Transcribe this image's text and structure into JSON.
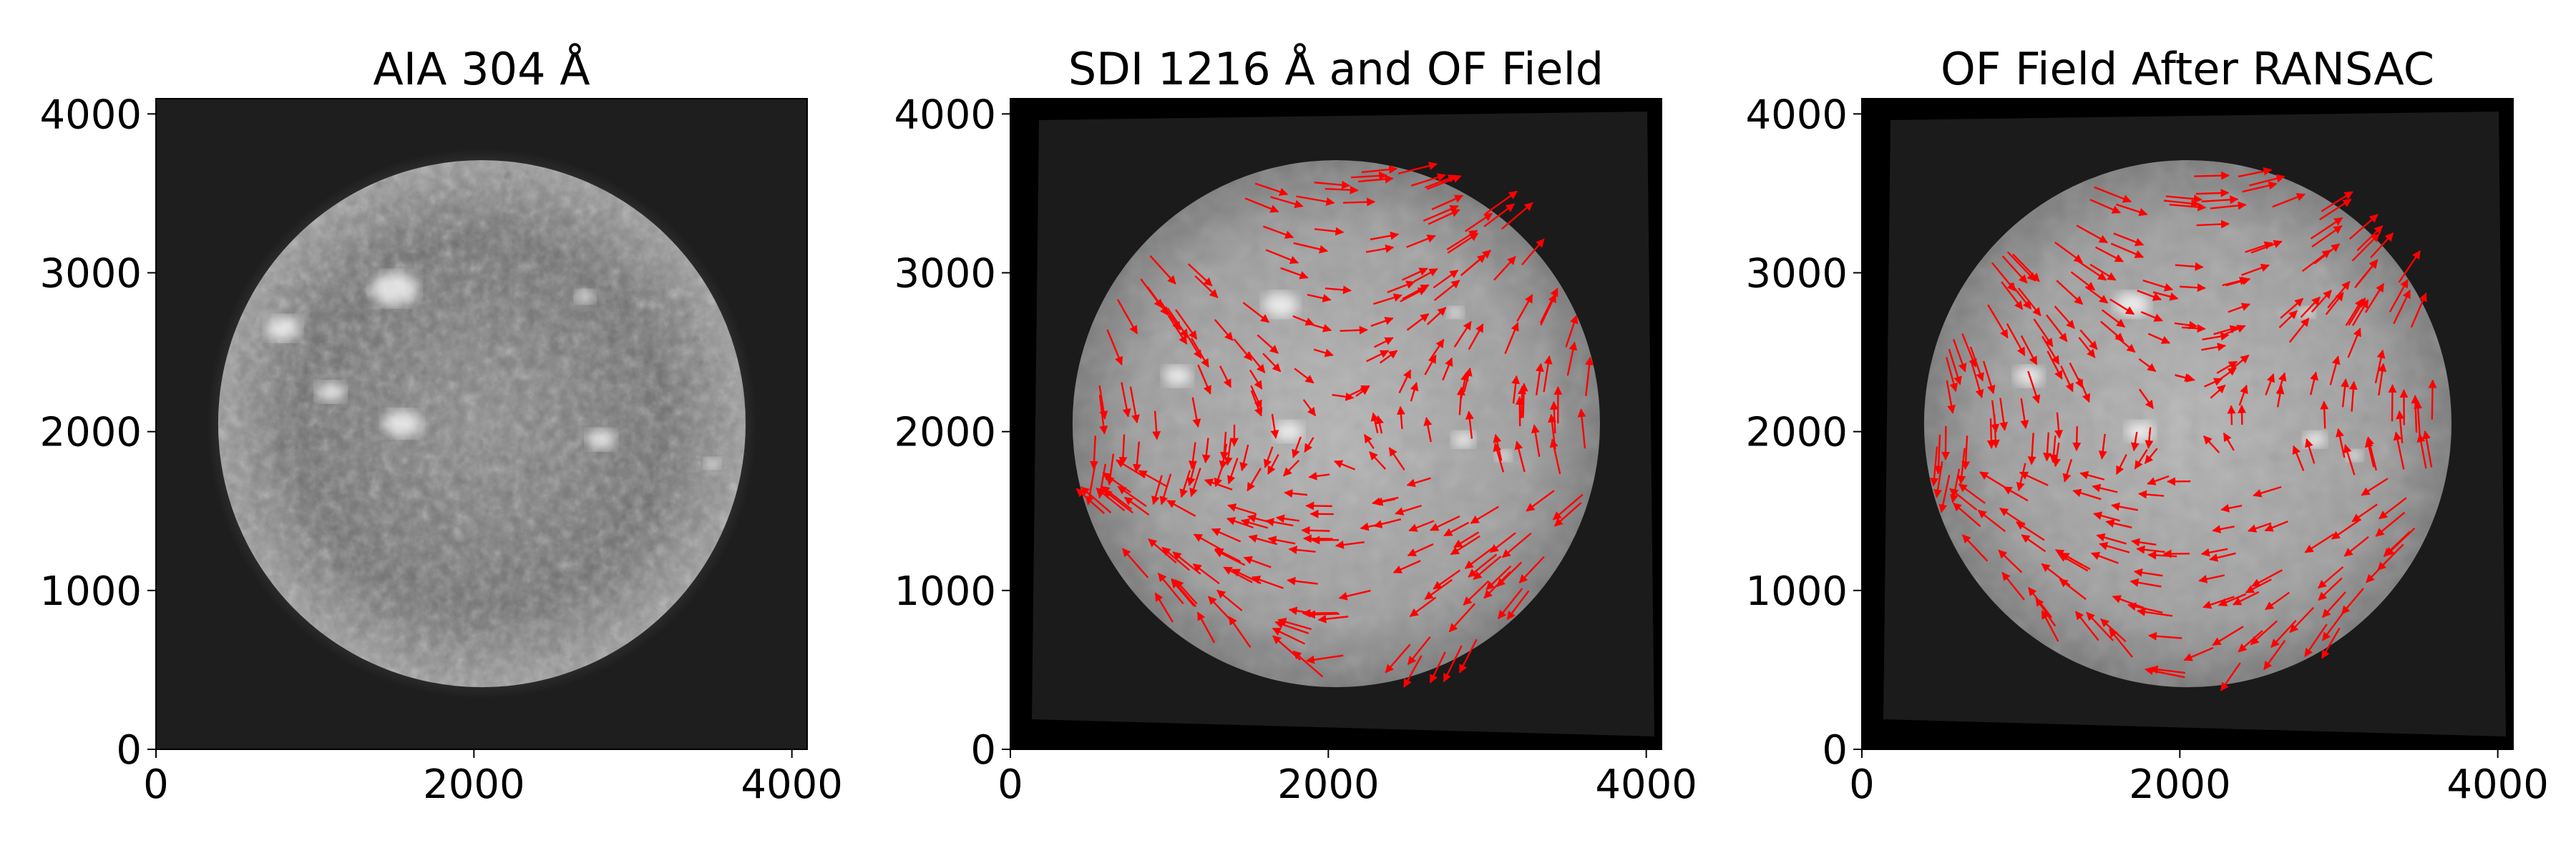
{
  "figure": {
    "panels": [
      {
        "id": "aia",
        "title": "AIA 304 Å",
        "xticks": [
          "0",
          "2000",
          "4000"
        ],
        "yticks": [
          "0",
          "1000",
          "2000",
          "3000",
          "4000"
        ],
        "arrows": false
      },
      {
        "id": "sdi",
        "title": "SDI 1216 Å and OF Field",
        "xticks": [
          "0",
          "2000",
          "4000"
        ],
        "yticks": [
          "0",
          "1000",
          "2000",
          "3000",
          "4000"
        ],
        "arrows": true
      },
      {
        "id": "ransac",
        "title": "OF Field After RANSAC",
        "xticks": [
          "0",
          "2000",
          "4000"
        ],
        "yticks": [
          "0",
          "1000",
          "2000",
          "3000",
          "4000"
        ],
        "arrows": true
      }
    ],
    "axis_range": [
      0,
      4096
    ],
    "arrow_color": "#ff0000",
    "background_color": "#000000"
  }
}
